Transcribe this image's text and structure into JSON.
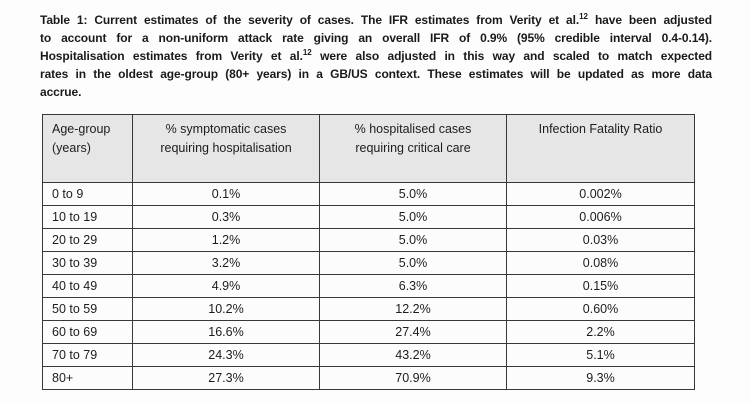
{
  "caption": {
    "lines": [
      {
        "pre": "Table 1: Current estimates of the severity of cases. The IFR estimates from Verity et al.",
        "sup": "12",
        "post": " have been adjusted"
      },
      {
        "pre": "to account for a non-uniform attack rate giving an overall IFR of 0.9% (95% credible interval 0.4-0.14).",
        "sup": "",
        "post": ""
      },
      {
        "pre": "Hospitalisation estimates from Verity et al.",
        "sup": "12",
        "post": " were also adjusted in this way and scaled to match expected"
      },
      {
        "pre": "rates in the oldest age-group (80+ years) in a GB/US context. These estimates will be updated as more data",
        "sup": "",
        "post": ""
      },
      {
        "pre": "accrue.",
        "sup": "",
        "post": ""
      }
    ]
  },
  "table": {
    "headers": [
      "Age-group (years)",
      "% symptomatic cases requiring hospitalisation",
      "% hospitalised cases requiring critical care",
      "Infection Fatality Ratio"
    ],
    "rows": [
      [
        "0 to 9",
        "0.1%",
        "5.0%",
        "0.002%"
      ],
      [
        "10 to 19",
        "0.3%",
        "5.0%",
        "0.006%"
      ],
      [
        "20 to 29",
        "1.2%",
        "5.0%",
        "0.03%"
      ],
      [
        "30 to 39",
        "3.2%",
        "5.0%",
        "0.08%"
      ],
      [
        "40 to 49",
        "4.9%",
        "6.3%",
        "0.15%"
      ],
      [
        "50 to 59",
        "10.2%",
        "12.2%",
        "0.60%"
      ],
      [
        "60 to 69",
        "16.6%",
        "27.4%",
        "2.2%"
      ],
      [
        "70 to 79",
        "24.3%",
        "43.2%",
        "5.1%"
      ],
      [
        "80+",
        "27.3%",
        "70.9%",
        "9.3%"
      ]
    ]
  },
  "colors": {
    "header_background": "#e6e6e6",
    "table_border": "#383838",
    "text": "#1d1d1d"
  }
}
